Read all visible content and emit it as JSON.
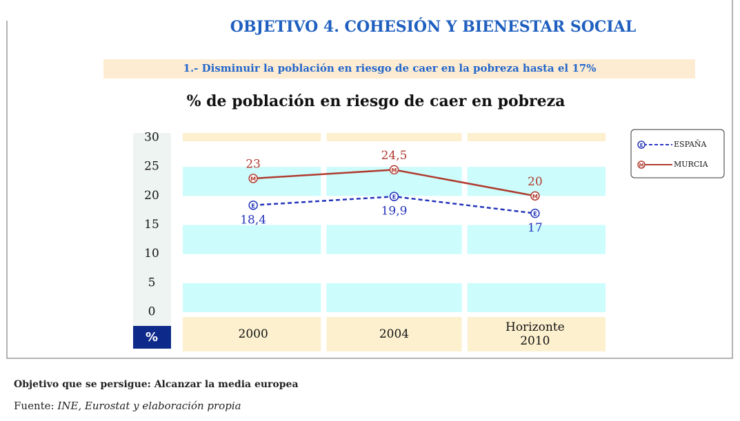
{
  "chart_data": {
    "type": "line",
    "header": "OBJETIVO 4. COHESIÓN Y BIENESTAR SOCIAL",
    "subtitle": "1.- Disminuir la población en riesgo de caer en la pobreza hasta el 17%",
    "title": "% de población en riesgo de caer en pobreza",
    "ylabel": "%",
    "categories": [
      "2000",
      "2004",
      "Horizonte 2010"
    ],
    "series": [
      {
        "name": "ESPAÑA",
        "marker": "E",
        "color": "#2233bb",
        "dash": true,
        "values": [
          18.4,
          19.9,
          17
        ],
        "value_labels": [
          "18,4",
          "19,9",
          "17"
        ]
      },
      {
        "name": "MURCIA",
        "marker": "M",
        "color": "#b03a2e",
        "dash": false,
        "values": [
          23,
          24.5,
          20
        ],
        "value_labels": [
          "23",
          "24,5",
          "20"
        ]
      }
    ],
    "ylim": [
      0,
      30
    ],
    "yticks": [
      0,
      5,
      10,
      15,
      20,
      25,
      30
    ],
    "legend": "right",
    "footer": "Objetivo que se persigue: Alcanzar la media europea",
    "source_label": "Fuente:",
    "source": "INE, Eurostat y elaboración propia"
  }
}
